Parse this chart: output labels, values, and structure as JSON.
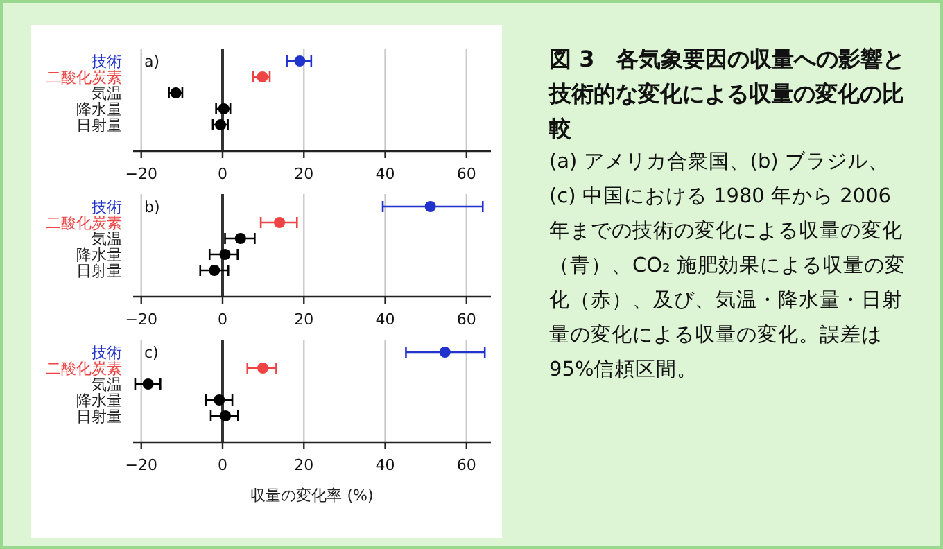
{
  "chart_data": [
    {
      "type": "scatter",
      "orientation": "horizontal",
      "marker": "circle",
      "grid": "x",
      "annotations": [
        "a)"
      ],
      "categories": [
        "技術",
        "二酸化炭素",
        "気温",
        "降水量",
        "日射量"
      ],
      "colors": [
        "#2233cc",
        "#ee4444",
        "#000000",
        "#000000",
        "#000000"
      ],
      "values": [
        19.0,
        9.8,
        -11.5,
        0.3,
        -0.5
      ],
      "errors": [
        [
          15.8,
          21.8
        ],
        [
          7.5,
          11.6
        ],
        [
          -13.2,
          -9.9
        ],
        [
          -1.6,
          1.9
        ],
        [
          -2.4,
          1.3
        ]
      ],
      "xlim": [
        -22,
        66
      ],
      "xticks": [
        -20,
        0,
        20,
        40,
        60
      ],
      "ref_lines": [
        {
          "axis": "x",
          "value": 0,
          "color": "#333333"
        }
      ]
    },
    {
      "type": "scatter",
      "orientation": "horizontal",
      "marker": "circle",
      "grid": "x",
      "annotations": [
        "b)"
      ],
      "categories": [
        "技術",
        "二酸化炭素",
        "気温",
        "降水量",
        "日射量"
      ],
      "colors": [
        "#2233cc",
        "#ee4444",
        "#000000",
        "#000000",
        "#000000"
      ],
      "values": [
        51.1,
        14.0,
        4.4,
        0.6,
        -2.0
      ],
      "errors": [
        [
          39.4,
          64.0
        ],
        [
          9.4,
          18.3
        ],
        [
          0.6,
          7.9
        ],
        [
          -3.2,
          3.7
        ],
        [
          -5.5,
          1.4
        ]
      ],
      "xlim": [
        -22,
        66
      ],
      "xticks": [
        -20,
        0,
        20,
        40,
        60
      ],
      "ref_lines": [
        {
          "axis": "x",
          "value": 0,
          "color": "#333333"
        }
      ]
    },
    {
      "type": "scatter",
      "orientation": "horizontal",
      "marker": "circle",
      "grid": "x",
      "annotations": [
        "c)"
      ],
      "xlabel": "収量の変化率 (%)",
      "categories": [
        "技術",
        "二酸化炭素",
        "気温",
        "降水量",
        "日射量"
      ],
      "colors": [
        "#2233cc",
        "#ee4444",
        "#000000",
        "#000000",
        "#000000"
      ],
      "values": [
        54.7,
        9.9,
        -18.3,
        -0.8,
        0.7
      ],
      "errors": [
        [
          45.1,
          64.5
        ],
        [
          6.1,
          13.2
        ],
        [
          -21.5,
          -15.3
        ],
        [
          -4.1,
          2.4
        ],
        [
          -2.9,
          3.8
        ]
      ],
      "xlim": [
        -22,
        66
      ],
      "xticks": [
        -20,
        0,
        20,
        40,
        60
      ],
      "ref_lines": [
        {
          "axis": "x",
          "value": 0,
          "color": "#333333"
        }
      ]
    },
    {
      "type": "other",
      "title": "図 3　各気象要因の収量への影響と技術的な変化による収量の変化の比較",
      "annotations": [
        "(a) アメリカ合衆国、(b) ブラジル、(c) 中国における 1980 年から 2006 年までの技術の変化による収量の変化（青）、CO₂ 施肥効果による収量の変化（赤）、及び、気温・降水量・日射量の変化による収量の変化。誤差は 95%信頼区間。"
      ]
    }
  ]
}
